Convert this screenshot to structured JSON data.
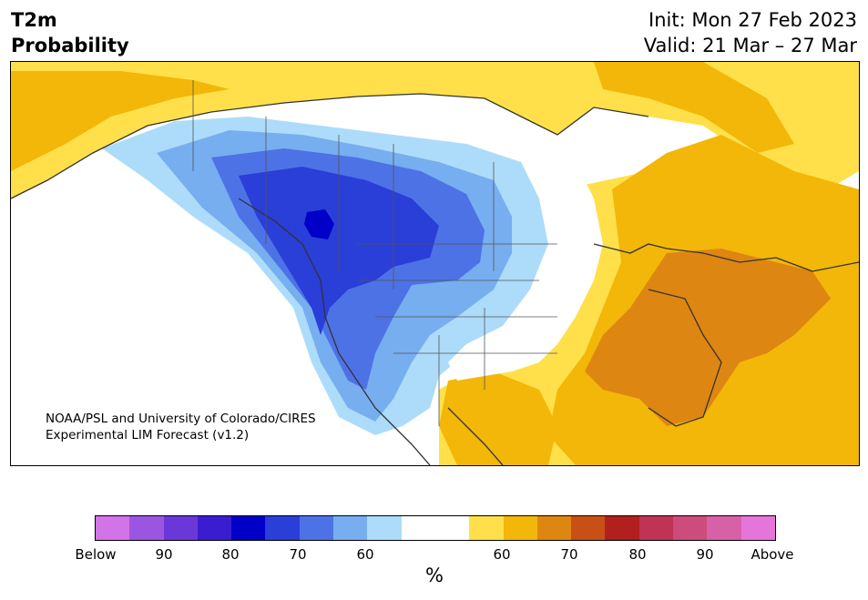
{
  "header": {
    "title_line1": "T2m",
    "title_line2": "Probability",
    "init_text": "Init: Mon 27 Feb 2023",
    "valid_text": "Valid: 21 Mar – 27 Mar"
  },
  "map": {
    "credit_line1": "NOAA/PSL and University of Colorado/CIRES",
    "credit_line2": "Experimental LIM Forecast (v1.2)",
    "region": "North America",
    "pattern": "below-normal over western US/Canada, above-normal over eastern US/Canada and Gulf"
  },
  "colorbar": {
    "unit": "%",
    "colors": [
      "#d373e8",
      "#9a56e0",
      "#6a38d8",
      "#3a1dd0",
      "#0000c8",
      "#2a3ed8",
      "#4d72e6",
      "#76aef0",
      "#acdcfa",
      "#ffffff",
      "#ffffff",
      "#ffe04a",
      "#f2b708",
      "#de8612",
      "#c85016",
      "#b21f1f",
      "#c03355",
      "#cc4d7b",
      "#d761a6",
      "#e675da"
    ],
    "tick_labels": [
      "Below",
      "90",
      "80",
      "70",
      "60",
      "60",
      "70",
      "80",
      "90",
      "Above"
    ]
  }
}
